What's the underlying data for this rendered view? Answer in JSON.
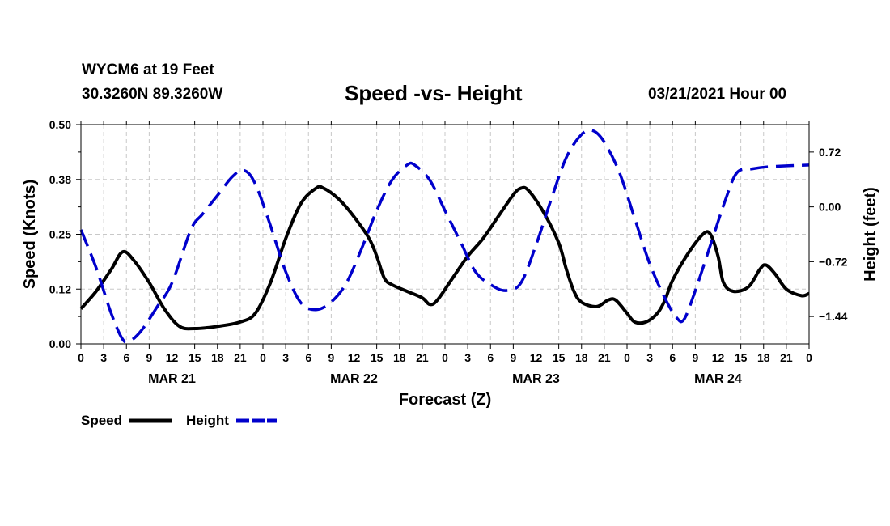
{
  "header": {
    "station": "WYCM6 at 19 Feet",
    "coords": "30.3260N 89.3260W",
    "title": "Speed -vs- Height",
    "datetime": "03/21/2021 Hour 00"
  },
  "colors": {
    "speed": "#000000",
    "height": "#0000cc",
    "grid": "#c8c8c8"
  },
  "chart_data": {
    "type": "line",
    "title": "Speed -vs- Height",
    "xlabel": "Forecast (Z)",
    "ylabel_left": "Speed (Knots)",
    "ylabel_right": "Height (feet)",
    "grid": true,
    "x_range": [
      0,
      96
    ],
    "x_ticks": [
      0,
      3,
      6,
      9,
      12,
      15,
      18,
      21,
      24,
      27,
      30,
      33,
      36,
      39,
      42,
      45,
      48,
      51,
      54,
      57,
      60,
      63,
      66,
      69,
      72,
      75,
      78,
      81,
      84,
      87,
      90,
      93,
      96
    ],
    "x_tick_labels": [
      "0",
      "3",
      "6",
      "9",
      "12",
      "15",
      "18",
      "21",
      "0",
      "3",
      "6",
      "9",
      "12",
      "15",
      "18",
      "21",
      "0",
      "3",
      "6",
      "9",
      "12",
      "15",
      "18",
      "21",
      "0",
      "3",
      "6",
      "9",
      "12",
      "15",
      "18",
      "21",
      "0"
    ],
    "day_labels": [
      {
        "hour": 12,
        "label": "MAR 21"
      },
      {
        "hour": 36,
        "label": "MAR 22"
      },
      {
        "hour": 60,
        "label": "MAR 23"
      },
      {
        "hour": 84,
        "label": "MAR 24"
      }
    ],
    "y_left": {
      "range": [
        0,
        0.5
      ],
      "ticks": [
        0,
        0.125,
        0.25,
        0.375,
        0.5
      ],
      "tick_labels": [
        "0.00",
        "0.12",
        "0.25",
        "0.38",
        "0.50"
      ]
    },
    "y_right": {
      "range": [
        -1.8,
        1.08
      ],
      "ticks": [
        -1.44,
        -0.72,
        0.0,
        0.72
      ],
      "tick_labels": [
        "−1.44",
        "−0.72",
        "0.00",
        "0.72"
      ]
    },
    "legend": {
      "placement": "bottom-left",
      "entries": [
        {
          "name": "Speed",
          "style": "solid"
        },
        {
          "name": "Height",
          "style": "dashed"
        }
      ]
    },
    "series": [
      {
        "name": "Speed",
        "axis": "left",
        "style": "solid",
        "points": [
          [
            0,
            0.08
          ],
          [
            2,
            0.12
          ],
          [
            4,
            0.17
          ],
          [
            5.5,
            0.21
          ],
          [
            7,
            0.19
          ],
          [
            9,
            0.14
          ],
          [
            11,
            0.08
          ],
          [
            13,
            0.04
          ],
          [
            15,
            0.035
          ],
          [
            18,
            0.04
          ],
          [
            21,
            0.05
          ],
          [
            23,
            0.07
          ],
          [
            25,
            0.14
          ],
          [
            27,
            0.24
          ],
          [
            29,
            0.32
          ],
          [
            31,
            0.355
          ],
          [
            32,
            0.355
          ],
          [
            34,
            0.33
          ],
          [
            36,
            0.29
          ],
          [
            38,
            0.24
          ],
          [
            39,
            0.2
          ],
          [
            40,
            0.15
          ],
          [
            41,
            0.135
          ],
          [
            43,
            0.12
          ],
          [
            45,
            0.105
          ],
          [
            46,
            0.09
          ],
          [
            47,
            0.1
          ],
          [
            49,
            0.15
          ],
          [
            51,
            0.2
          ],
          [
            53,
            0.24
          ],
          [
            55,
            0.29
          ],
          [
            57,
            0.34
          ],
          [
            58,
            0.355
          ],
          [
            59,
            0.35
          ],
          [
            61,
            0.3
          ],
          [
            63,
            0.23
          ],
          [
            64,
            0.17
          ],
          [
            65,
            0.12
          ],
          [
            66,
            0.095
          ],
          [
            68,
            0.085
          ],
          [
            69.5,
            0.1
          ],
          [
            70.5,
            0.1
          ],
          [
            72,
            0.07
          ],
          [
            73,
            0.05
          ],
          [
            74.5,
            0.05
          ],
          [
            76,
            0.07
          ],
          [
            77,
            0.1
          ],
          [
            78,
            0.145
          ],
          [
            80,
            0.205
          ],
          [
            82,
            0.25
          ],
          [
            83,
            0.25
          ],
          [
            84,
            0.2
          ],
          [
            84.7,
            0.14
          ],
          [
            86,
            0.12
          ],
          [
            88,
            0.13
          ],
          [
            89.5,
            0.17
          ],
          [
            90.3,
            0.18
          ],
          [
            91.5,
            0.16
          ],
          [
            93,
            0.125
          ],
          [
            95,
            0.11
          ],
          [
            96,
            0.115
          ]
        ]
      },
      {
        "name": "Height",
        "axis": "right",
        "style": "dashed",
        "points": [
          [
            0,
            -0.3
          ],
          [
            2,
            -0.8
          ],
          [
            4,
            -1.4
          ],
          [
            5.5,
            -1.74
          ],
          [
            6.5,
            -1.76
          ],
          [
            8,
            -1.62
          ],
          [
            10,
            -1.32
          ],
          [
            12,
            -1.0
          ],
          [
            14.5,
            -0.3
          ],
          [
            16,
            -0.1
          ],
          [
            18,
            0.15
          ],
          [
            20,
            0.4
          ],
          [
            21.5,
            0.48
          ],
          [
            23,
            0.3
          ],
          [
            25,
            -0.25
          ],
          [
            27,
            -0.85
          ],
          [
            29,
            -1.26
          ],
          [
            31,
            -1.35
          ],
          [
            33,
            -1.25
          ],
          [
            35,
            -1.0
          ],
          [
            37,
            -0.55
          ],
          [
            39,
            -0.05
          ],
          [
            41,
            0.35
          ],
          [
            43,
            0.55
          ],
          [
            44,
            0.55
          ],
          [
            46,
            0.35
          ],
          [
            48,
            -0.05
          ],
          [
            50,
            -0.45
          ],
          [
            52,
            -0.85
          ],
          [
            54,
            -1.02
          ],
          [
            56,
            -1.1
          ],
          [
            58,
            -1.0
          ],
          [
            60,
            -0.5
          ],
          [
            62,
            0.1
          ],
          [
            64,
            0.65
          ],
          [
            66,
            0.95
          ],
          [
            67.5,
            1.0
          ],
          [
            69,
            0.85
          ],
          [
            71,
            0.45
          ],
          [
            73,
            -0.15
          ],
          [
            75,
            -0.75
          ],
          [
            77,
            -1.2
          ],
          [
            78.5,
            -1.45
          ],
          [
            79.5,
            -1.48
          ],
          [
            81,
            -1.1
          ],
          [
            83,
            -0.5
          ],
          [
            85,
            0.1
          ],
          [
            86.5,
            0.45
          ],
          [
            88.5,
            0.5
          ],
          [
            91,
            0.53
          ],
          [
            96,
            0.55
          ]
        ]
      }
    ]
  }
}
